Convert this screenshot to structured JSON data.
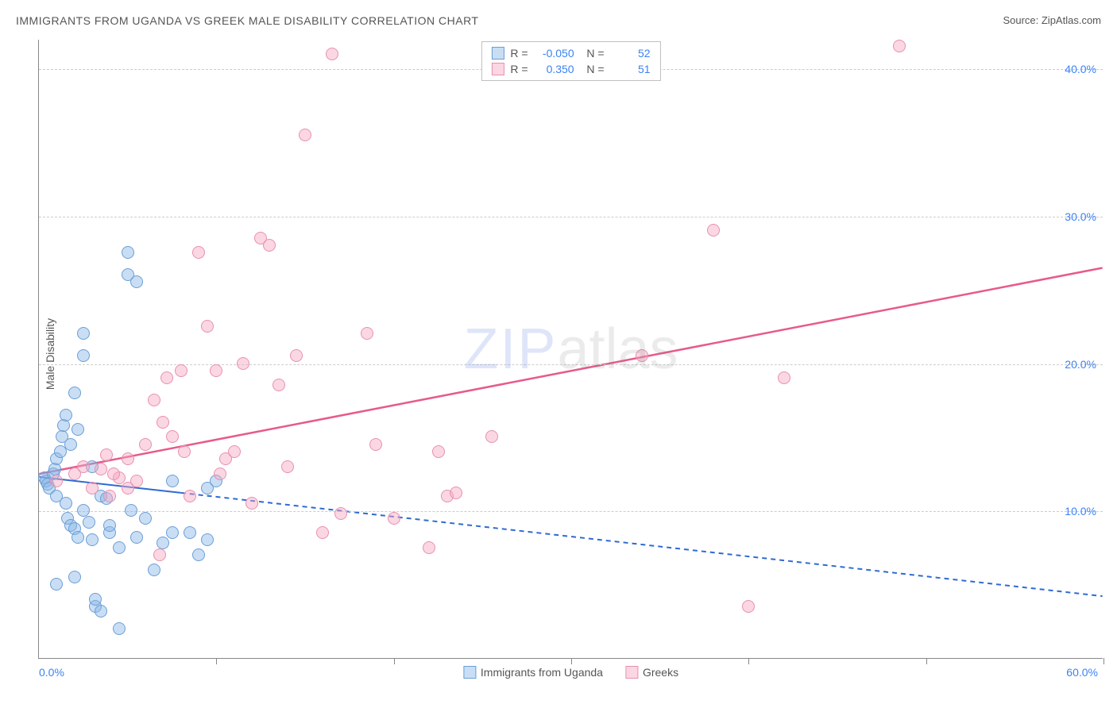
{
  "title": "IMMIGRANTS FROM UGANDA VS GREEK MALE DISABILITY CORRELATION CHART",
  "source": "Source: ZipAtlas.com",
  "y_axis_label": "Male Disability",
  "watermark_a": "ZIP",
  "watermark_b": "atlas",
  "chart": {
    "type": "scatter",
    "xlim": [
      0,
      60
    ],
    "ylim": [
      0,
      42
    ],
    "x_ticks_major": [
      0,
      10,
      20,
      30,
      40,
      50,
      60
    ],
    "y_gridlines": [
      10,
      20,
      30,
      40
    ],
    "x_tick_labels": [
      {
        "value": 0,
        "label": "0.0%",
        "pos": "left"
      },
      {
        "value": 60,
        "label": "60.0%",
        "pos": "right"
      }
    ],
    "y_tick_labels": [
      {
        "value": 10,
        "label": "10.0%"
      },
      {
        "value": 20,
        "label": "20.0%"
      },
      {
        "value": 30,
        "label": "30.0%"
      },
      {
        "value": 40,
        "label": "40.0%"
      }
    ],
    "point_radius": 8,
    "series": [
      {
        "id": "uganda",
        "label": "Immigrants from Uganda",
        "fill": "rgba(135, 181, 231, 0.45)",
        "stroke": "#6b9ed6",
        "legend_stroke": "#6b9ed6",
        "R": "-0.050",
        "N": "52",
        "trend": {
          "color": "#2e6bd1",
          "width": 2,
          "solid_to_x": 8,
          "y_start": 12.3,
          "y_end": 4.2,
          "dash": "6,5"
        },
        "points": [
          [
            0.3,
            12.2
          ],
          [
            0.4,
            12.0
          ],
          [
            0.5,
            11.8
          ],
          [
            0.6,
            11.5
          ],
          [
            0.8,
            12.5
          ],
          [
            0.9,
            12.8
          ],
          [
            1.0,
            11.0
          ],
          [
            1.0,
            13.5
          ],
          [
            1.2,
            14.0
          ],
          [
            1.3,
            15.0
          ],
          [
            1.4,
            15.8
          ],
          [
            1.5,
            16.5
          ],
          [
            1.5,
            10.5
          ],
          [
            1.6,
            9.5
          ],
          [
            1.8,
            9.0
          ],
          [
            1.8,
            14.5
          ],
          [
            2.0,
            18.0
          ],
          [
            2.0,
            8.8
          ],
          [
            2.2,
            8.2
          ],
          [
            2.2,
            15.5
          ],
          [
            2.5,
            22.0
          ],
          [
            2.5,
            20.5
          ],
          [
            2.5,
            10.0
          ],
          [
            2.8,
            9.2
          ],
          [
            3.0,
            8.0
          ],
          [
            3.0,
            13.0
          ],
          [
            3.2,
            3.5
          ],
          [
            3.2,
            4.0
          ],
          [
            3.5,
            3.2
          ],
          [
            3.5,
            11.0
          ],
          [
            4.0,
            8.5
          ],
          [
            4.0,
            9.0
          ],
          [
            4.5,
            2.0
          ],
          [
            4.5,
            7.5
          ],
          [
            5.0,
            26.0
          ],
          [
            5.0,
            27.5
          ],
          [
            5.5,
            8.2
          ],
          [
            6.0,
            9.5
          ],
          [
            6.5,
            6.0
          ],
          [
            7.0,
            7.8
          ],
          [
            7.5,
            12.0
          ],
          [
            7.5,
            8.5
          ],
          [
            8.5,
            8.5
          ],
          [
            9.0,
            7.0
          ],
          [
            9.5,
            11.5
          ],
          [
            9.5,
            8.0
          ],
          [
            10.0,
            12.0
          ],
          [
            5.5,
            25.5
          ],
          [
            1.0,
            5.0
          ],
          [
            2.0,
            5.5
          ],
          [
            3.8,
            10.8
          ],
          [
            5.2,
            10.0
          ]
        ]
      },
      {
        "id": "greeks",
        "label": "Greeks",
        "fill": "rgba(246, 166, 192, 0.45)",
        "stroke": "#e890af",
        "legend_stroke": "#e890af",
        "R": "0.350",
        "N": "51",
        "trend": {
          "color": "#e75a8c",
          "width": 2.5,
          "solid_to_x": 60,
          "y_start": 12.5,
          "y_end": 26.5,
          "dash": null
        },
        "points": [
          [
            1.0,
            12.0
          ],
          [
            2.0,
            12.5
          ],
          [
            2.5,
            13.0
          ],
          [
            3.0,
            11.5
          ],
          [
            3.5,
            12.8
          ],
          [
            4.0,
            11.0
          ],
          [
            4.5,
            12.2
          ],
          [
            5.0,
            13.5
          ],
          [
            5.0,
            11.5
          ],
          [
            5.5,
            12.0
          ],
          [
            6.0,
            14.5
          ],
          [
            6.5,
            17.5
          ],
          [
            7.0,
            16.0
          ],
          [
            7.5,
            15.0
          ],
          [
            8.0,
            19.5
          ],
          [
            8.5,
            11.0
          ],
          [
            9.0,
            27.5
          ],
          [
            9.5,
            22.5
          ],
          [
            10.0,
            19.5
          ],
          [
            10.5,
            13.5
          ],
          [
            11.0,
            14.0
          ],
          [
            11.5,
            20.0
          ],
          [
            12.0,
            10.5
          ],
          [
            12.5,
            28.5
          ],
          [
            13.5,
            18.5
          ],
          [
            14.0,
            13.0
          ],
          [
            14.5,
            20.5
          ],
          [
            15.0,
            35.5
          ],
          [
            16.0,
            8.5
          ],
          [
            16.5,
            41.0
          ],
          [
            17.0,
            9.8
          ],
          [
            18.5,
            22.0
          ],
          [
            19.0,
            14.5
          ],
          [
            20.0,
            9.5
          ],
          [
            22.0,
            7.5
          ],
          [
            22.5,
            14.0
          ],
          [
            23.0,
            11.0
          ],
          [
            23.5,
            11.2
          ],
          [
            25.5,
            15.0
          ],
          [
            34.0,
            20.5
          ],
          [
            38.0,
            29.0
          ],
          [
            40.0,
            3.5
          ],
          [
            42.0,
            19.0
          ],
          [
            48.5,
            41.5
          ],
          [
            6.8,
            7.0
          ],
          [
            8.2,
            14.0
          ],
          [
            4.2,
            12.5
          ],
          [
            3.8,
            13.8
          ],
          [
            10.2,
            12.5
          ],
          [
            7.2,
            19.0
          ],
          [
            13.0,
            28.0
          ]
        ]
      }
    ]
  }
}
